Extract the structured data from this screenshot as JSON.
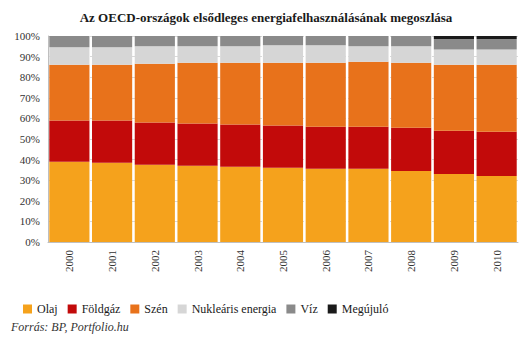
{
  "chart_data": {
    "type": "bar",
    "title": "Az OECD-országok elsődleges energiafelhasználásának megoszlása",
    "source": "Forrás: BP, Portfolio.hu",
    "categories": [
      "2000",
      "2001",
      "2002",
      "2003",
      "2004",
      "2005",
      "2006",
      "2007",
      "2008",
      "2009",
      "2010"
    ],
    "series": [
      {
        "name": "Olaj",
        "color": "#f5a21c",
        "values": [
          39,
          38.5,
          37.5,
          37,
          36.5,
          36,
          35.5,
          35.5,
          34.5,
          33,
          32
        ]
      },
      {
        "name": "Földgáz",
        "color": "#c20a0a",
        "values": [
          20,
          20.5,
          20.5,
          20.5,
          20.5,
          20.5,
          20.5,
          20.5,
          21,
          21,
          21.5
        ]
      },
      {
        "name": "Szén",
        "color": "#e8721b",
        "values": [
          27,
          27,
          28.5,
          29.5,
          30,
          30.5,
          31,
          31.5,
          31.5,
          32,
          32.5
        ]
      },
      {
        "name": "Nukleáris energia",
        "color": "#d6d6d6",
        "values": [
          8.5,
          8.5,
          8.5,
          8,
          8,
          8.5,
          8.5,
          7.5,
          8,
          7.5,
          7.5
        ]
      },
      {
        "name": "Víz",
        "color": "#8a8a8a",
        "values": [
          5.5,
          5.5,
          5,
          5,
          5,
          4.5,
          4.5,
          5,
          5,
          5,
          5
        ]
      },
      {
        "name": "Megújuló",
        "color": "#1a1a1a",
        "values": [
          0,
          0,
          0,
          0,
          0,
          0,
          0,
          0,
          0,
          1.5,
          1.5
        ]
      }
    ],
    "stacked": true,
    "ylim": [
      0,
      100
    ],
    "yticks": [
      {
        "value": 0,
        "label": "0%"
      },
      {
        "value": 10,
        "label": "10%"
      },
      {
        "value": 20,
        "label": "20%"
      },
      {
        "value": 30,
        "label": "30%"
      },
      {
        "value": 40,
        "label": "40%"
      },
      {
        "value": 50,
        "label": "50%"
      },
      {
        "value": 60,
        "label": "60%"
      },
      {
        "value": 70,
        "label": "70%"
      },
      {
        "value": 80,
        "label": "80%"
      },
      {
        "value": 90,
        "label": "90%"
      },
      {
        "value": 100,
        "label": "100%"
      }
    ],
    "grid": true,
    "legend": "bottom"
  }
}
